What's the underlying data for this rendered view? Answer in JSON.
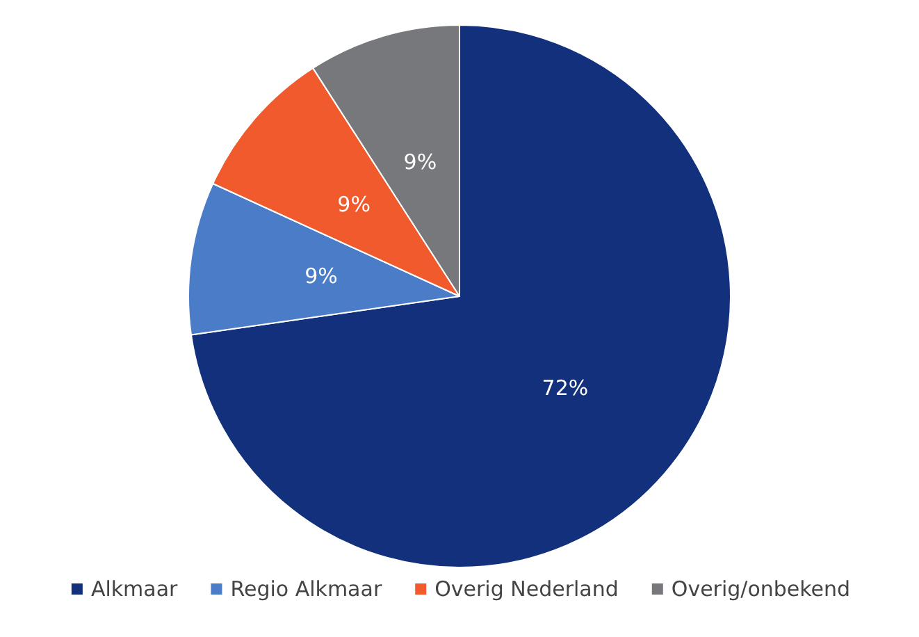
{
  "chart_data": {
    "type": "pie",
    "categories": [
      "Alkmaar",
      "Regio Alkmaar",
      "Overig Nederland",
      "Overig/onbekend"
    ],
    "values": [
      72,
      9,
      9,
      9
    ],
    "value_labels": [
      "72%",
      "9%",
      "9%",
      "9%"
    ],
    "colors": [
      "#12307b",
      "#4a7cc8",
      "#f05a2c",
      "#77787b"
    ],
    "legend": "bottom"
  }
}
